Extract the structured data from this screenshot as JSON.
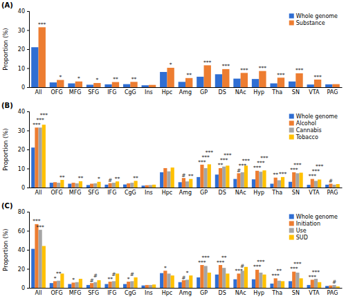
{
  "chart_data": [
    {
      "type": "bar",
      "title": "(A)",
      "ylabel": "Proportion (%)",
      "categories": [
        "All",
        "OFG",
        "MFG",
        "SFG",
        "IFG",
        "CgG",
        "Ins",
        "Hpc",
        "Amg",
        "GP",
        "DS",
        "NAc",
        "Hyp",
        "Tha",
        "SN",
        "VTA",
        "PAG"
      ],
      "series": [
        {
          "name": "Whole genome",
          "color": "#2f6ed3",
          "values": [
            21,
            2.5,
            2,
            1.3,
            1.5,
            1.6,
            1,
            8,
            2.8,
            5.5,
            6.8,
            4.5,
            4.3,
            2,
            3,
            1.4,
            1.5
          ]
        },
        {
          "name": "Substance",
          "color": "#ed7d31",
          "values": [
            31.5,
            3.8,
            3,
            2.2,
            2.7,
            2.8,
            1.2,
            10.2,
            4.8,
            11.5,
            9.5,
            7.5,
            8.5,
            5,
            7.3,
            4,
            1.6
          ],
          "annotations": [
            "***",
            "*",
            "*",
            "*",
            "**",
            "**",
            null,
            "*",
            "**",
            "***",
            "***",
            "***",
            "***",
            "***",
            "***",
            "***",
            null
          ]
        }
      ],
      "ylim": [
        0,
        40
      ],
      "yticks": [
        0,
        10,
        20,
        30,
        40
      ],
      "legend": "top-right"
    },
    {
      "type": "bar",
      "title": "(B)",
      "ylabel": "Proportion (%)",
      "categories": [
        "All",
        "OFG",
        "MFG",
        "SFG",
        "IFG",
        "CgG",
        "Ins",
        "Hpc",
        "Amg",
        "GP",
        "DS",
        "NAc",
        "Hyp",
        "Tha",
        "SN",
        "VTA",
        "PAG"
      ],
      "series": [
        {
          "name": "Whole genome",
          "color": "#2f6ed3",
          "values": [
            21,
            2.5,
            2,
            1.3,
            1.5,
            1.6,
            1,
            8,
            2.8,
            5.5,
            6.8,
            4.5,
            4.3,
            2,
            3,
            1.4,
            1.5
          ]
        },
        {
          "name": "Alcohol",
          "color": "#ed7d31",
          "values": [
            31.5,
            2.8,
            2.5,
            2,
            2.3,
            2.2,
            1.2,
            10.2,
            5,
            12,
            10.2,
            7.5,
            8.8,
            5.2,
            8,
            4.5,
            2
          ],
          "annotations": [
            "***",
            null,
            null,
            null,
            "#",
            null,
            null,
            null,
            "#",
            "***",
            "**",
            "#",
            "***",
            "**",
            "***",
            "***",
            "#"
          ]
        },
        {
          "name": "Cannabis",
          "color": "#a5a5a5",
          "values": [
            31.5,
            2.5,
            2.2,
            2.2,
            2.5,
            2.5,
            1.3,
            8.5,
            3.2,
            10.2,
            11,
            8,
            8.3,
            3.8,
            7.5,
            3.5,
            1.5
          ],
          "annotations": [
            "***",
            null,
            null,
            null,
            null,
            null,
            null,
            null,
            null,
            "***",
            "***",
            "***",
            "***",
            null,
            "***",
            "***",
            null
          ]
        },
        {
          "name": "Tobacco",
          "color": "#ffc000",
          "values": [
            33,
            4,
            3.3,
            3,
            3.2,
            3.5,
            1.5,
            10.5,
            4.5,
            12.2,
            11.5,
            11.5,
            9,
            5.5,
            7.8,
            4.2,
            1.8
          ],
          "annotations": [
            "***",
            "**",
            "**",
            "*",
            "**",
            "**",
            null,
            null,
            "**",
            "***",
            "***",
            "***",
            "***",
            "***",
            null,
            "***",
            null
          ]
        }
      ],
      "ylim": [
        0,
        40
      ],
      "yticks": [
        0,
        10,
        20,
        30,
        40
      ],
      "legend": "top-right"
    },
    {
      "type": "bar",
      "title": "(C)",
      "ylabel": "Proportion (%)",
      "categories": [
        "All",
        "OFG",
        "MFG",
        "SFG",
        "IFG",
        "CgG",
        "Ins",
        "Hpc",
        "Amg",
        "GP",
        "DS",
        "NAc",
        "Hyp",
        "Tha",
        "SN",
        "VTA",
        "PAG"
      ],
      "series": [
        {
          "name": "Whole genome",
          "color": "#2f6ed3",
          "values": [
            41,
            5,
            4,
            3,
            4,
            4,
            2.5,
            15.5,
            6,
            11,
            14,
            9,
            9,
            4.5,
            7,
            3,
            2
          ]
        },
        {
          "name": "Initiation",
          "color": "#ed7d31",
          "values": [
            67,
            7,
            5.5,
            5,
            6.5,
            6.5,
            3,
            18,
            8,
            24,
            24,
            15,
            19,
            10,
            17,
            8.5,
            2.5
          ],
          "annotations": [
            "***",
            "*",
            "*",
            "#",
            "**",
            "*",
            null,
            "*",
            "#",
            "***",
            "***",
            "***",
            "***",
            "***",
            "***",
            "***",
            null
          ]
        },
        {
          "name": "Use",
          "color": "#a5a5a5",
          "values": [
            61,
            7.5,
            6,
            6,
            7,
            7,
            3,
            15,
            8.5,
            23,
            21,
            18,
            16,
            7.5,
            16,
            9.5,
            3
          ],
          "annotations": [
            "***",
            "**",
            null,
            "#",
            "#",
            "#",
            null,
            null,
            "*",
            "***",
            "**",
            "#",
            "***",
            "**",
            "***",
            "***",
            "#"
          ]
        },
        {
          "name": "SUD",
          "color": "#ffc000",
          "values": [
            44,
            15,
            9.5,
            8,
            15,
            11,
            3.5,
            13,
            13,
            16,
            15,
            22,
            14,
            7,
            10,
            6,
            1.5
          ]
        }
      ],
      "ylim": [
        0,
        80
      ],
      "yticks": [
        0,
        20,
        40,
        60,
        80
      ],
      "legend": "top-right"
    }
  ]
}
